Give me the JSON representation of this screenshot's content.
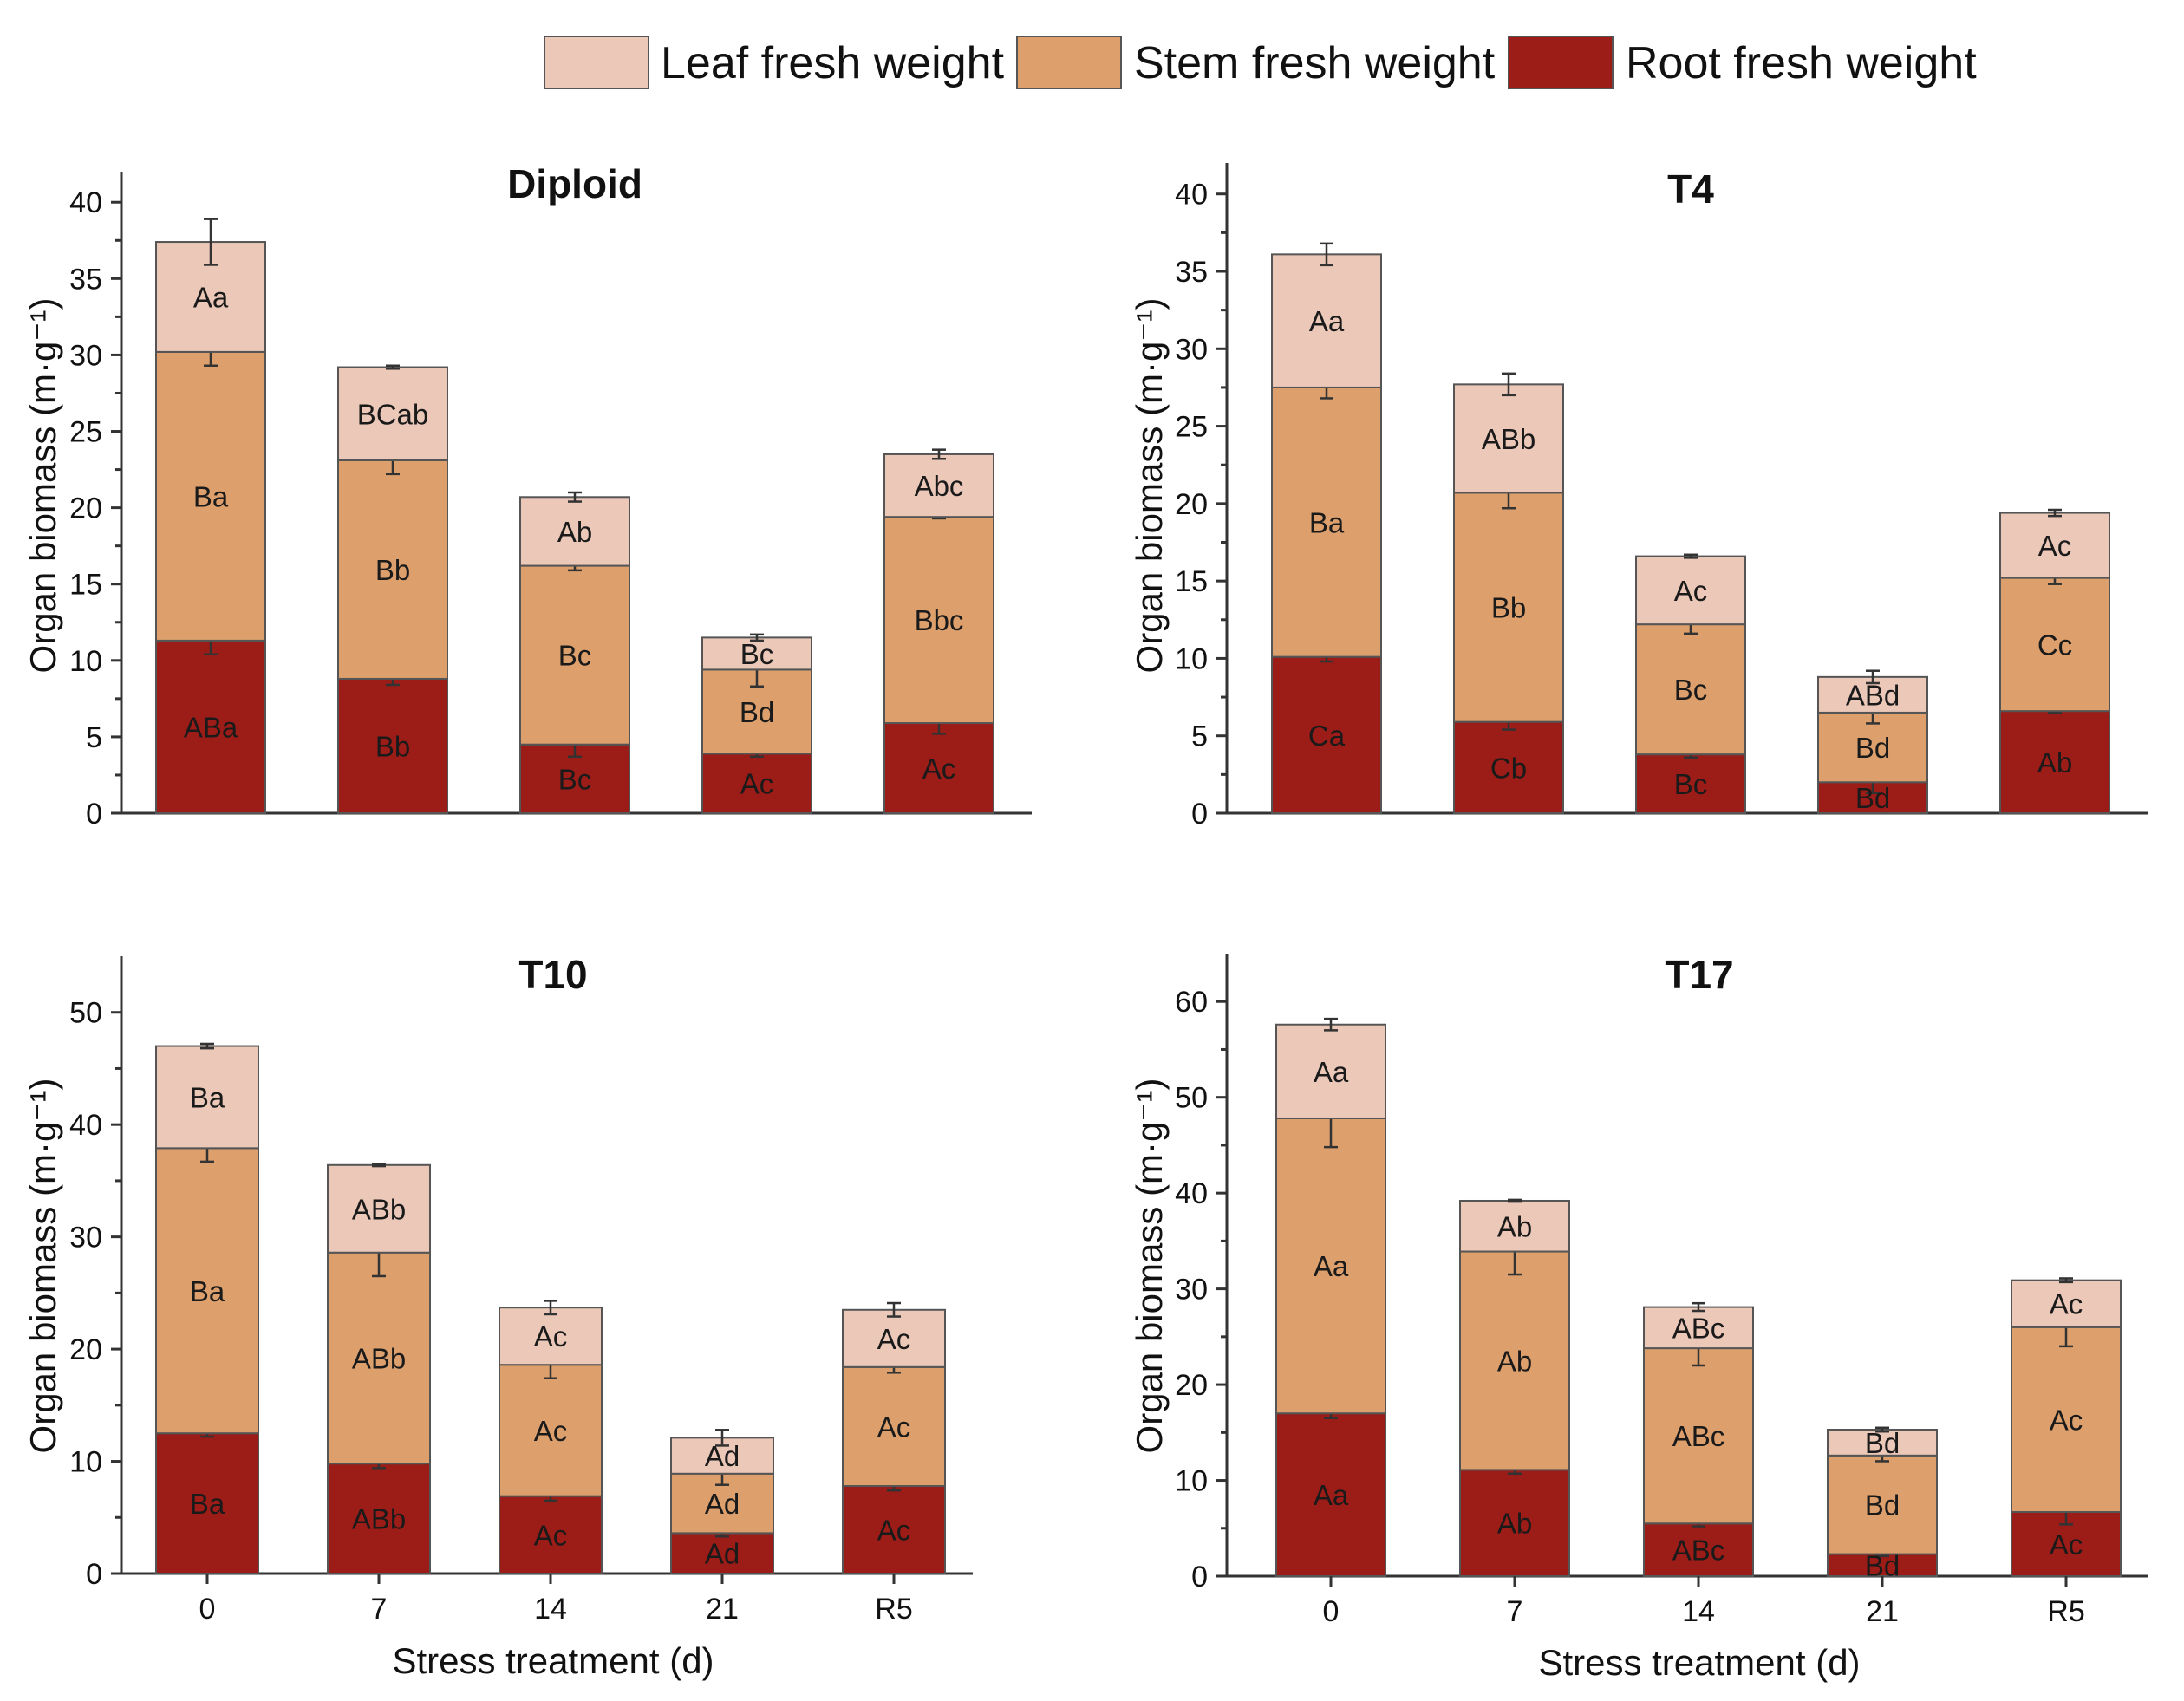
{
  "colors": {
    "leaf": "#ecc8b8",
    "stem": "#dda06d",
    "root": "#9c1c17",
    "axis": "#333333"
  },
  "chart_data": [
    {
      "type": "bar",
      "stacked": true,
      "title": "Diploid",
      "xlabel": "",
      "ylabel": "Organ biomass (m·g⁻¹)",
      "ylim": [
        0,
        42
      ],
      "yticks": [
        0,
        5,
        10,
        15,
        20,
        25,
        30,
        35,
        40
      ],
      "categories": [
        "0",
        "7",
        "14",
        "21",
        "R5"
      ],
      "show_xticks": false,
      "series": [
        {
          "name": "Root fresh weight",
          "key": "root",
          "values": [
            11.3,
            8.8,
            4.5,
            3.9,
            5.9
          ],
          "errors": [
            0.9,
            0.4,
            0.8,
            0.2,
            0.7
          ],
          "letters": [
            "ABa",
            "Bb",
            "Bc",
            "Ac",
            "Ac"
          ]
        },
        {
          "name": "Stem fresh weight",
          "key": "stem",
          "values": [
            18.9,
            14.3,
            11.7,
            5.5,
            13.5
          ],
          "errors": [
            0.9,
            0.9,
            0.3,
            1.1,
            0.1
          ],
          "letters": [
            "Ba",
            "Bb",
            "Bc",
            "Bd",
            "Bbc"
          ]
        },
        {
          "name": "Leaf fresh weight",
          "key": "leaf",
          "values": [
            7.2,
            6.1,
            4.5,
            2.1,
            4.1
          ],
          "errors": [
            1.5,
            0.1,
            0.3,
            0.2,
            0.3
          ],
          "letters": [
            "Aa",
            "BCab",
            "Ab",
            "Bc",
            "Abc"
          ]
        }
      ]
    },
    {
      "type": "bar",
      "stacked": true,
      "title": "T4",
      "xlabel": "",
      "ylabel": "Organ biomass (m·g⁻¹)",
      "ylim": [
        0,
        42
      ],
      "yticks": [
        0,
        5,
        10,
        15,
        20,
        25,
        30,
        35,
        40
      ],
      "categories": [
        "0",
        "7",
        "14",
        "21",
        "R5"
      ],
      "show_xticks": false,
      "series": [
        {
          "name": "Root fresh weight",
          "key": "root",
          "values": [
            10.1,
            5.9,
            3.8,
            2.0,
            6.6
          ],
          "errors": [
            0.3,
            0.5,
            0.2,
            0.7,
            0.1
          ],
          "letters": [
            "Ca",
            "Cb",
            "Bc",
            "Bd",
            "Ab"
          ]
        },
        {
          "name": "Stem fresh weight",
          "key": "stem",
          "values": [
            17.4,
            14.8,
            8.4,
            4.5,
            8.6
          ],
          "errors": [
            0.7,
            1.0,
            0.6,
            0.7,
            0.4
          ],
          "letters": [
            "Ba",
            "Bb",
            "Bc",
            "Bd",
            "Cc"
          ]
        },
        {
          "name": "Leaf fresh weight",
          "key": "leaf",
          "values": [
            8.6,
            7.0,
            4.4,
            2.3,
            4.2
          ],
          "errors": [
            0.7,
            0.7,
            0.1,
            0.4,
            0.2
          ],
          "letters": [
            "Aa",
            "ABb",
            "Ac",
            "ABd",
            "Ac"
          ]
        }
      ]
    },
    {
      "type": "bar",
      "stacked": true,
      "title": "T10",
      "xlabel": "Stress treatment (d)",
      "ylabel": "Organ biomass (m·g⁻¹)",
      "ylim": [
        0,
        55
      ],
      "yticks": [
        0,
        10,
        20,
        30,
        40,
        50
      ],
      "categories": [
        "0",
        "7",
        "14",
        "21",
        "R5"
      ],
      "show_xticks": true,
      "series": [
        {
          "name": "Root fresh weight",
          "key": "root",
          "values": [
            12.5,
            9.8,
            6.9,
            3.6,
            7.8
          ],
          "errors": [
            0.3,
            0.4,
            0.4,
            0.3,
            0.4
          ],
          "letters": [
            "Ba",
            "ABb",
            "Ac",
            "Ad",
            "Ac"
          ]
        },
        {
          "name": "Stem fresh weight",
          "key": "stem",
          "values": [
            25.4,
            18.8,
            11.7,
            5.3,
            10.6
          ],
          "errors": [
            1.2,
            2.1,
            1.2,
            1.0,
            0.5
          ],
          "letters": [
            "Ba",
            "ABb",
            "Ac",
            "Ad",
            "Ac"
          ]
        },
        {
          "name": "Leaf fresh weight",
          "key": "leaf",
          "values": [
            9.1,
            7.8,
            5.1,
            3.2,
            5.1
          ],
          "errors": [
            0.2,
            0.1,
            0.6,
            0.7,
            0.6
          ],
          "letters": [
            "Ba",
            "ABb",
            "Ac",
            "Ad",
            "Ac"
          ]
        }
      ]
    },
    {
      "type": "bar",
      "stacked": true,
      "title": "T17",
      "xlabel": "Stress treatment (d)",
      "ylabel": "Organ biomass (m·g⁻¹)",
      "ylim": [
        0,
        65
      ],
      "yticks": [
        0,
        10,
        20,
        30,
        40,
        50,
        60
      ],
      "categories": [
        "0",
        "7",
        "14",
        "21",
        "R5"
      ],
      "show_xticks": true,
      "series": [
        {
          "name": "Root fresh weight",
          "key": "root",
          "values": [
            17.0,
            11.1,
            5.5,
            2.3,
            6.7
          ],
          "errors": [
            0.5,
            0.4,
            0.3,
            0.2,
            1.3
          ],
          "letters": [
            "Aa",
            "Ab",
            "ABc",
            "Bd",
            "Ac"
          ]
        },
        {
          "name": "Stem fresh weight",
          "key": "stem",
          "values": [
            30.8,
            22.8,
            18.3,
            10.3,
            19.3
          ],
          "errors": [
            3.0,
            2.4,
            1.8,
            0.6,
            2.0
          ],
          "letters": [
            "Aa",
            "Ab",
            "ABc",
            "Bd",
            "Ac"
          ]
        },
        {
          "name": "Leaf fresh weight",
          "key": "leaf",
          "values": [
            9.8,
            5.3,
            4.3,
            2.7,
            4.9
          ],
          "errors": [
            0.6,
            0.1,
            0.4,
            0.2,
            0.2
          ],
          "letters": [
            "Aa",
            "Ab",
            "ABc",
            "Bd",
            "Ac"
          ]
        }
      ]
    }
  ],
  "legend": [
    {
      "key": "leaf",
      "label": "Leaf fresh weight"
    },
    {
      "key": "stem",
      "label": "Stem fresh weight"
    },
    {
      "key": "root",
      "label": "Root fresh weight"
    }
  ]
}
